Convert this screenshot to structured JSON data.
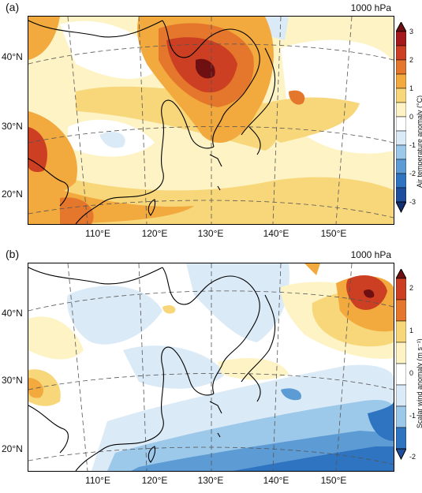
{
  "colors": {
    "neg3": "#1f4e9e",
    "neg2": "#2f74c0",
    "neg1": "#9cc8ea",
    "neg05": "#dbeaf7",
    "zero": "#ffffff",
    "pos05": "#fdf3c4",
    "pos1": "#f8d77a",
    "pos15": "#f2a93e",
    "pos2": "#e4772c",
    "pos25": "#cc3f22",
    "pos3": "#a3191c",
    "pos35": "#6e0f12",
    "coast": "#000000",
    "grid": "#555555"
  },
  "panels": [
    {
      "label": "(a)",
      "level": "1000 hPa",
      "lat_labels": [
        "40°N",
        "30°N",
        "20°N"
      ],
      "lon_labels": [
        "110°E",
        "120°E",
        "130°E",
        "140°E",
        "150°E"
      ],
      "colorbar": {
        "title": "Air temperature anomaly (°C)",
        "ticks": [
          "3",
          "2",
          "1",
          "0",
          "-1",
          "-2",
          "-3"
        ]
      }
    },
    {
      "label": "(b)",
      "level": "1000 hPa",
      "lat_labels": [
        "40°N",
        "30°N",
        "20°N"
      ],
      "lon_labels": [
        "110°E",
        "120°E",
        "130°E",
        "140°E",
        "150°E"
      ],
      "colorbar": {
        "title": "Scalar wind anomaly (m s⁻¹)",
        "ticks": [
          "2",
          "1",
          "0",
          "-1",
          "-2"
        ]
      }
    }
  ]
}
